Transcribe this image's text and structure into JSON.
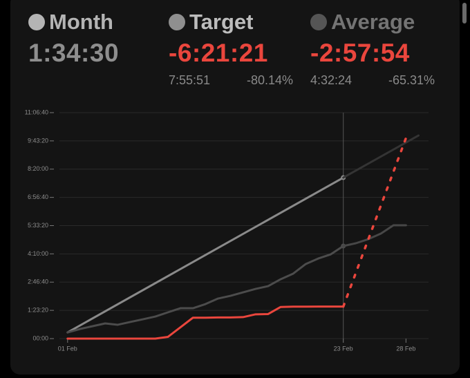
{
  "header": {
    "month": {
      "title": "Month",
      "value": "1:34:30"
    },
    "target": {
      "title": "Target",
      "value": "-6:21:21",
      "time": "7:55:51",
      "percent": "-80.14%"
    },
    "average": {
      "title": "Average",
      "value": "-2:57:54",
      "time": "4:32:24",
      "percent": "-65.31%"
    }
  },
  "chart_data": {
    "type": "line",
    "xlim": [
      0.35,
      29.8
    ],
    "ylim": [
      0,
      40000
    ],
    "xticks": [
      {
        "value": 1,
        "label": "01 Feb"
      },
      {
        "value": 23,
        "label": "23 Feb"
      },
      {
        "value": 28,
        "label": "28 Feb"
      }
    ],
    "yticks": [
      {
        "value": 0,
        "label": "00:00"
      },
      {
        "value": 5000,
        "label": "1:23:20"
      },
      {
        "value": 10000,
        "label": "2:46:40"
      },
      {
        "value": 15000,
        "label": "4:10:00"
      },
      {
        "value": 20000,
        "label": "5:33:20"
      },
      {
        "value": 25000,
        "label": "6:56:40"
      },
      {
        "value": 30000,
        "label": "8:20:00"
      },
      {
        "value": 35000,
        "label": "9:43:20"
      },
      {
        "value": 40000,
        "label": "11:06:40"
      }
    ],
    "grid": true,
    "cursor_x": 23,
    "series": [
      {
        "color": "#8a8a8a",
        "x": [
          1,
          23
        ],
        "values": [
          1100,
          28500
        ],
        "end_marker": true
      },
      {
        "color": "#343434",
        "x": [
          23,
          29
        ],
        "values": [
          28500,
          35960
        ]
      },
      {
        "color": "#4c4c4c",
        "x": [
          1,
          2,
          3,
          4,
          5,
          6,
          7,
          8,
          9,
          10,
          11,
          12,
          13,
          14,
          15,
          16,
          17,
          18,
          19,
          20,
          21,
          22,
          23
        ],
        "values": [
          1100,
          1710,
          2200,
          2690,
          2450,
          2940,
          3420,
          3910,
          4650,
          5380,
          5380,
          6110,
          7090,
          7580,
          8190,
          8800,
          9290,
          10510,
          11500,
          13200,
          14180,
          14920,
          16390
        ],
        "end_marker": true
      },
      {
        "color": "#474747",
        "x": [
          23,
          24,
          25,
          26,
          27,
          28
        ],
        "values": [
          16390,
          16880,
          17610,
          18590,
          20060,
          20060
        ]
      },
      {
        "color": "#ea463d",
        "x": [
          1,
          2,
          3,
          4,
          5,
          6,
          7,
          8,
          9,
          10,
          11,
          12,
          13,
          14,
          15,
          16,
          17,
          18,
          19,
          20,
          21,
          22,
          23
        ],
        "values": [
          0,
          0,
          0,
          0,
          0,
          0,
          0,
          0,
          300,
          2000,
          3700,
          3700,
          3750,
          3750,
          3800,
          4300,
          4350,
          5600,
          5650,
          5650,
          5670,
          5670,
          5670
        ]
      },
      {
        "color": "#ea463d",
        "x": [
          23,
          28
        ],
        "values": [
          5670,
          35500
        ],
        "dotted": true
      }
    ]
  }
}
